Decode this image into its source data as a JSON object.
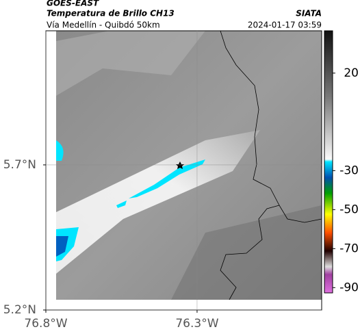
{
  "header": {
    "source": "GOES-EAST",
    "title": "Temperatura de Brillo CH13",
    "brand": "SIATA",
    "route": "Vía Medellín - Quibdó 50km",
    "timestamp": "2024-01-17 03:59"
  },
  "map": {
    "xlim": [
      -76.8,
      -75.888
    ],
    "ylim": [
      5.2,
      6.162
    ],
    "xticks": [
      {
        "value": -76.8,
        "label": "76.8°W"
      },
      {
        "value": -76.3,
        "label": "76.3°W"
      }
    ],
    "yticks": [
      {
        "value": 5.2,
        "label": "5.2°N"
      },
      {
        "value": 5.7,
        "label": "5.7°N"
      }
    ],
    "colorbar": {
      "lim": [
        -92.7,
        41.7
      ],
      "ticks": [
        20,
        -30,
        -50,
        -70,
        -90
      ]
    }
  }
}
